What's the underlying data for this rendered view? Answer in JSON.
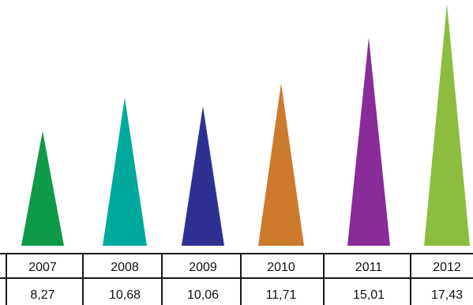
{
  "chart_data": {
    "type": "bar",
    "categories": [
      "2007",
      "2008",
      "2009",
      "2010",
      "2011",
      "2012"
    ],
    "values": [
      8.27,
      10.68,
      10.06,
      11.71,
      15.01,
      17.43
    ],
    "value_labels": [
      "8,27",
      "10,68",
      "10,06",
      "11,71",
      "15,01",
      "17,43"
    ],
    "colors": [
      "#0f9a4a",
      "#00a99d",
      "#2e3192",
      "#cd7a2c",
      "#8a2b9a",
      "#8cbd3f"
    ],
    "mark_shape": "triangle",
    "grid": false,
    "legend": "none",
    "table_below": true
  }
}
